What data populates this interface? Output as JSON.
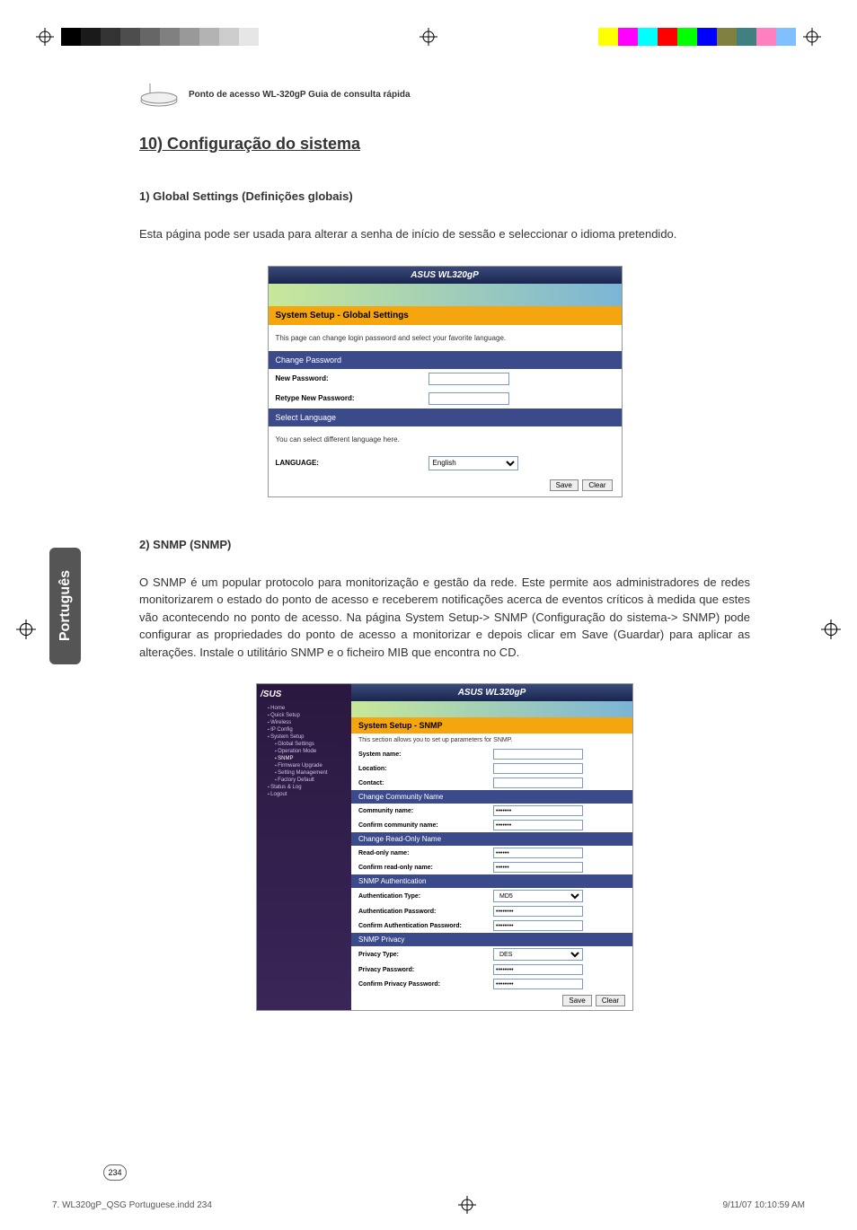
{
  "print_marks": {
    "gray_bars": [
      "#000000",
      "#1a1a1a",
      "#333333",
      "#4d4d4d",
      "#666666",
      "#808080",
      "#999999",
      "#b3b3b3",
      "#cccccc",
      "#e6e6e6"
    ],
    "color_bars": [
      "#ffff00",
      "#ff00ff",
      "#00ffff",
      "#ff0000",
      "#00ff00",
      "#0000ff",
      "#808040",
      "#408080",
      "#ff80c0",
      "#80c0ff"
    ]
  },
  "header": {
    "product_line": "Ponto de acesso WL-320gP Guia de consulta rápida"
  },
  "section": {
    "title": "10) Configuração do sistema"
  },
  "sub1": {
    "title": "1) Global Settings (Definições globais)",
    "text": "Esta página pode ser usada para alterar a senha de início de sessão e seleccionar o idioma pretendido."
  },
  "screenshot1": {
    "titlebar": "ASUS WL320gP",
    "section_header": "System Setup - Global Settings",
    "desc": "This page can change login password and select your favorite language.",
    "change_pw_header": "Change Password",
    "new_pw_label": "New Password:",
    "retype_pw_label": "Retype New Password:",
    "select_lang_header": "Select Language",
    "lang_desc": "You can select different language here.",
    "lang_label": "LANGUAGE:",
    "lang_value": "English",
    "save": "Save",
    "clear": "Clear"
  },
  "sub2": {
    "title": "2) SNMP (SNMP)",
    "text": "O SNMP é um popular protocolo para monitorização e gestão da rede. Este permite aos administradores de redes monitorizarem o estado do ponto de acesso e receberem notificações acerca de eventos críticos à medida que estes vão acontecendo no ponto de acesso. Na página System Setup-> SNMP (Configuração do sistema-> SNMP) pode configurar as propriedades do ponto de acesso a monitorizar e depois clicar em Save (Guardar) para aplicar as alterações. Instale o utilitário SNMP e o ficheiro MIB que encontra no CD."
  },
  "screenshot2": {
    "titlebar": "ASUS WL320gP",
    "sidebar": {
      "brand": "/SUS",
      "items": [
        {
          "label": "Home",
          "sub": false
        },
        {
          "label": "Quick Setup",
          "sub": false
        },
        {
          "label": "Wireless",
          "sub": false
        },
        {
          "label": "IP Config",
          "sub": false
        },
        {
          "label": "System Setup",
          "sub": false
        },
        {
          "label": "Global Settings",
          "sub": true
        },
        {
          "label": "Operation Mode",
          "sub": true
        },
        {
          "label": "SNMP",
          "sub": true,
          "active": true
        },
        {
          "label": "Firmware Upgrade",
          "sub": true
        },
        {
          "label": "Setting Management",
          "sub": true
        },
        {
          "label": "Factory Default",
          "sub": true
        },
        {
          "label": "Status & Log",
          "sub": false
        },
        {
          "label": "Logout",
          "sub": false
        }
      ]
    },
    "section_header": "System Setup - SNMP",
    "desc": "This section allows you to set up parameters for SNMP.",
    "rows": {
      "system_name": "System name:",
      "location": "Location:",
      "contact": "Contact:"
    },
    "change_community": "Change Community Name",
    "community_name": "Community name:",
    "confirm_community": "Confirm community name:",
    "community_val": "•••••••",
    "readonly_header": "Change Read-Only Name",
    "readonly_name": "Read-only name:",
    "confirm_readonly": "Confirm read-only name:",
    "readonly_val": "••••••",
    "auth_header": "SNMP Authentication",
    "auth_type": "Authentication Type:",
    "auth_type_val": "MD5",
    "auth_pw": "Authentication Password:",
    "confirm_auth_pw": "Confirm Authentication Password:",
    "auth_val": "••••••••",
    "privacy_header": "SNMP Privacy",
    "privacy_type": "Privacy Type:",
    "privacy_type_val": "DES",
    "privacy_pw": "Privacy Password:",
    "confirm_privacy_pw": "Confirm Privacy Password:",
    "privacy_val": "••••••••",
    "save": "Save",
    "clear": "Clear"
  },
  "side_tab": "Português",
  "page_number": "234",
  "footer": {
    "file": "7. WL320gP_QSG Portuguese.indd   234",
    "date": "9/11/07   10:10:59 AM"
  }
}
